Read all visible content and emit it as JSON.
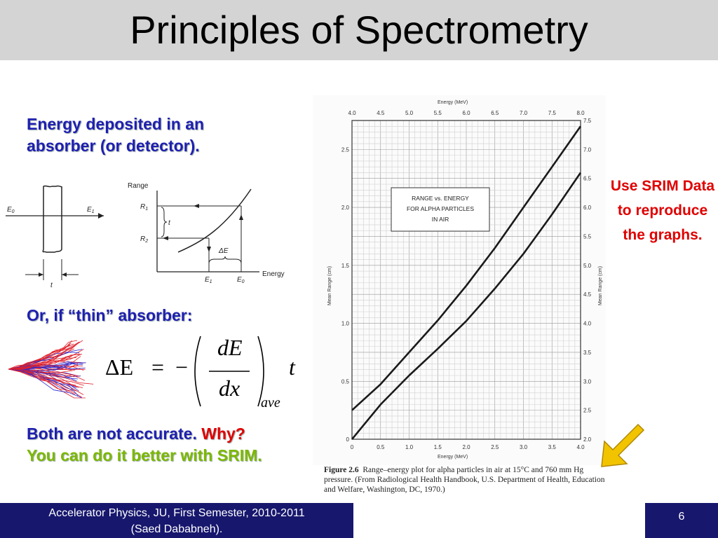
{
  "title": "Principles of Spectrometry",
  "energy_heading": "Energy deposited in an absorber (or detector).",
  "thin_heading": "Or, if “thin” absorber:",
  "conclusion": {
    "part1": "Both are not accurate. ",
    "why": "Why?",
    "part2": "You can do it better with SRIM."
  },
  "srim_note": "Use SRIM Data to reproduce the graphs.",
  "footer": {
    "course": "Accelerator Physics, JU, First Semester, 2010-2011",
    "author": "(Saed Dababneh).",
    "page": "6"
  },
  "formula": {
    "lhs": "ΔE",
    "eq": "=",
    "minus": "−",
    "num": "dE",
    "den": "dx",
    "sub": "ave",
    "t": "t"
  },
  "absorber_diagram": {
    "e0": "E",
    "e0_sub": "0",
    "e1": "E",
    "e1_sub": "1",
    "t": "t"
  },
  "range_diagram": {
    "range_label": "Range",
    "r1": "R",
    "r1_sub": "1",
    "r2": "R",
    "r2_sub": "2",
    "t": "t",
    "delta_e": "ΔE",
    "e1": "E",
    "e1_sub": "1",
    "e0": "E",
    "e0_sub": "0",
    "energy_label": "Energy"
  },
  "figure": {
    "top_axis_title": "Energy (MeV)",
    "left_axis_title": "Mean Range (cm)",
    "right_axis_title": "Mean Range (cm)",
    "bottom_axis_title": "Energy (MeV)",
    "box_lines": [
      "RANGE vs. ENERGY",
      "FOR ALPHA PARTICLES",
      "IN AIR"
    ],
    "caption_bold": "Figure 2.6",
    "caption": "Range–energy plot for alpha particles in air at 15°C and 760 mm Hg pressure. (From Radiological Health Handbook, U.S. Department of Health, Education and Welfare, Washington, DC, 1970.)"
  },
  "chart_data": {
    "type": "line",
    "title": "RANGE vs. ENERGY FOR ALPHA PARTICLES IN AIR",
    "series": [
      {
        "name": "lower-energy curve",
        "axis": "bottom-left",
        "x": [
          0,
          0.5,
          1.0,
          1.5,
          2.0,
          2.5,
          3.0,
          3.5,
          4.0
        ],
        "y": [
          0.0,
          0.3,
          0.55,
          0.78,
          1.02,
          1.3,
          1.6,
          1.94,
          2.3
        ]
      },
      {
        "name": "higher-energy curve",
        "axis": "top-right",
        "x": [
          4.0,
          4.5,
          5.0,
          5.5,
          6.0,
          6.5,
          7.0,
          7.5,
          8.0
        ],
        "y": [
          2.5,
          2.95,
          3.5,
          4.05,
          4.65,
          5.3,
          6.0,
          6.7,
          7.4
        ]
      }
    ],
    "x_bottom_ticks": [
      "0",
      "0.5",
      "1.0",
      "1.5",
      "2.0",
      "2.5",
      "3.0",
      "3.5",
      "4.0"
    ],
    "x_top_ticks": [
      "4.0",
      "4.5",
      "5.0",
      "5.5",
      "6.0",
      "6.5",
      "7.0",
      "7.5",
      "8.0"
    ],
    "y_left_ticks": [
      "0",
      "0.5",
      "1.0",
      "1.5",
      "2.0",
      "2.5"
    ],
    "y_right_ticks": [
      "2.0",
      "2.5",
      "3.0",
      "3.5",
      "4.0",
      "4.5",
      "5.0",
      "5.5",
      "6.0",
      "6.5",
      "7.0",
      "7.5"
    ],
    "xlim_bottom": [
      0,
      4.0
    ],
    "xlim_top": [
      4.0,
      8.0
    ],
    "ylim_left": [
      0,
      2.75
    ],
    "ylim_right": [
      2.0,
      7.5
    ],
    "xlabel": "Energy (MeV)",
    "ylabel": "Mean Range (cm)",
    "grid": true
  }
}
